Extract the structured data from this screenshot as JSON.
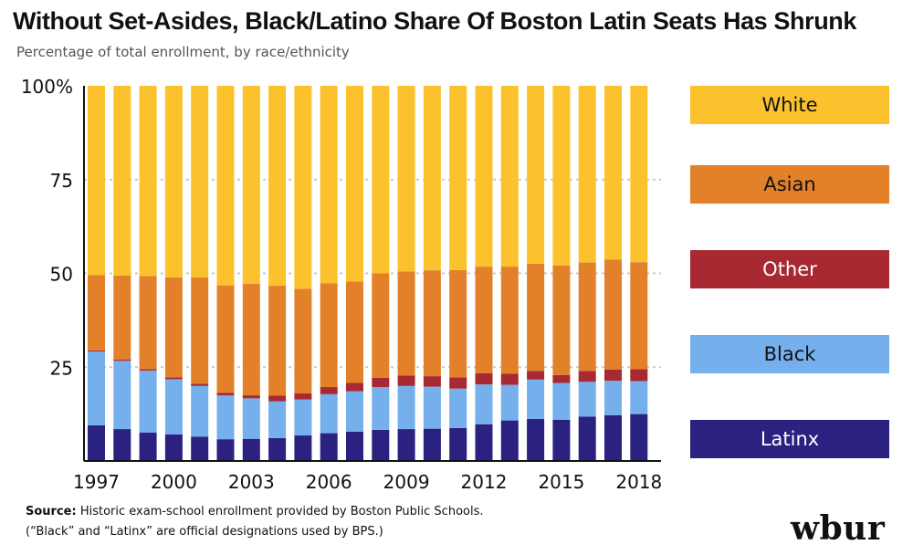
{
  "header": {
    "title": "Without Set-Asides, Black/Latino Share Of Boston Latin Seats Has Shrunk",
    "subtitle": "Percentage of total enrollment, by race/ethnicity"
  },
  "footer": {
    "source_label": "Source:",
    "source_text": "Historic exam-school enrollment provided by Boston Public Schools.",
    "note": "(“Black” and “Latinx” are official designations used by BPS.)",
    "logo": "wbur"
  },
  "colors": {
    "white": "#FBC22D",
    "asian": "#E2812A",
    "other": "#A82931",
    "black": "#75AFEC",
    "latinx": "#2A2181",
    "grid": "#c8c8c8",
    "axis": "#111111"
  },
  "chart_data": {
    "type": "bar",
    "stacked": true,
    "title": "Without Set-Asides, Black/Latino Share Of Boston Latin Seats Has Shrunk",
    "subtitle": "Percentage of total enrollment, by race/ethnicity",
    "xlabel": "",
    "ylabel": "",
    "ylim": [
      0,
      100
    ],
    "y_ticks": [
      25,
      50,
      75,
      100
    ],
    "y_tick_labels": [
      "25",
      "50",
      "75",
      "100%"
    ],
    "x_tick_labels": [
      "1997",
      "2000",
      "2003",
      "2006",
      "2009",
      "2012",
      "2015",
      "2018"
    ],
    "categories": [
      "1997",
      "1998",
      "1999",
      "2000",
      "2001",
      "2002",
      "2003",
      "2004",
      "2005",
      "2006",
      "2007",
      "2008",
      "2009",
      "2010",
      "2011",
      "2012",
      "2013",
      "2014",
      "2015",
      "2016",
      "2017",
      "2018"
    ],
    "series": [
      {
        "name": "Latinx",
        "color_key": "latinx",
        "values": [
          9.5,
          8.5,
          7.6,
          7.1,
          6.5,
          5.8,
          5.9,
          6.1,
          6.8,
          7.4,
          7.8,
          8.3,
          8.5,
          8.6,
          8.8,
          9.8,
          10.8,
          11.2,
          11.0,
          11.8,
          12.2,
          12.5
        ]
      },
      {
        "name": "Black",
        "color_key": "black",
        "values": [
          19.7,
          18.2,
          16.5,
          14.7,
          13.5,
          11.7,
          10.8,
          9.8,
          9.6,
          10.4,
          10.8,
          11.4,
          11.5,
          11.2,
          10.5,
          10.6,
          9.5,
          10.5,
          9.8,
          9.3,
          9.2,
          8.8
        ]
      },
      {
        "name": "Other",
        "color_key": "other",
        "values": [
          0.3,
          0.3,
          0.4,
          0.5,
          0.6,
          0.7,
          0.8,
          1.5,
          1.6,
          1.9,
          2.2,
          2.5,
          2.8,
          2.8,
          3.0,
          3.0,
          3.0,
          2.3,
          2.1,
          2.9,
          3.0,
          3.2
        ]
      },
      {
        "name": "Asian",
        "color_key": "asian",
        "values": [
          20.1,
          22.4,
          24.8,
          26.6,
          28.3,
          28.6,
          29.7,
          29.3,
          27.9,
          27.7,
          27.0,
          27.8,
          27.7,
          28.2,
          28.6,
          28.4,
          28.5,
          28.6,
          29.2,
          28.9,
          29.3,
          28.5
        ]
      },
      {
        "name": "White",
        "color_key": "white",
        "values": [
          50.4,
          50.6,
          50.7,
          51.1,
          51.1,
          53.2,
          52.8,
          53.3,
          54.1,
          52.6,
          52.2,
          50.0,
          49.5,
          49.2,
          49.1,
          48.2,
          48.2,
          47.4,
          47.9,
          47.1,
          46.3,
          47.0
        ]
      }
    ],
    "legend": {
      "placement": "right",
      "order": [
        "White",
        "Asian",
        "Other",
        "Black",
        "Latinx"
      ],
      "items": [
        {
          "label": "White",
          "color_key": "white",
          "text_color": "#111111"
        },
        {
          "label": "Asian",
          "color_key": "asian",
          "text_color": "#111111"
        },
        {
          "label": "Other",
          "color_key": "other",
          "text_color": "#ffffff"
        },
        {
          "label": "Black",
          "color_key": "black",
          "text_color": "#111111"
        },
        {
          "label": "Latinx",
          "color_key": "latinx",
          "text_color": "#ffffff"
        }
      ]
    }
  }
}
